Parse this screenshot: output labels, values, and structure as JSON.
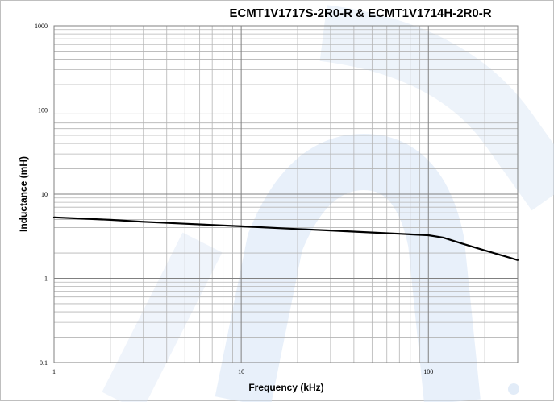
{
  "chart_data": {
    "type": "line",
    "title": "ECMT1V1717S-2R0-R & ECMT1V1714H-2R0-R",
    "xlabel": "Frequency (kHz)",
    "ylabel": "Inductance (mH)",
    "xscale": "log",
    "yscale": "log",
    "xlim": [
      1,
      300
    ],
    "ylim": [
      0.1,
      1000
    ],
    "xticks": [
      "1",
      "10",
      "100"
    ],
    "yticks": [
      "1000",
      "100",
      "10",
      "1",
      "0.1"
    ],
    "grid": true,
    "colors": {
      "line": "#000000",
      "major_grid": "#808080",
      "minor_grid": "#b4b4b4",
      "watermark": "#d6e4f5"
    },
    "series": [
      {
        "x": [
          1,
          2,
          3,
          5,
          10,
          20,
          30,
          50,
          70,
          100,
          120,
          150,
          200,
          300
        ],
        "y": [
          5.3,
          4.95,
          4.7,
          4.45,
          4.15,
          3.85,
          3.7,
          3.5,
          3.38,
          3.25,
          3.05,
          2.6,
          2.15,
          1.65
        ]
      }
    ]
  }
}
